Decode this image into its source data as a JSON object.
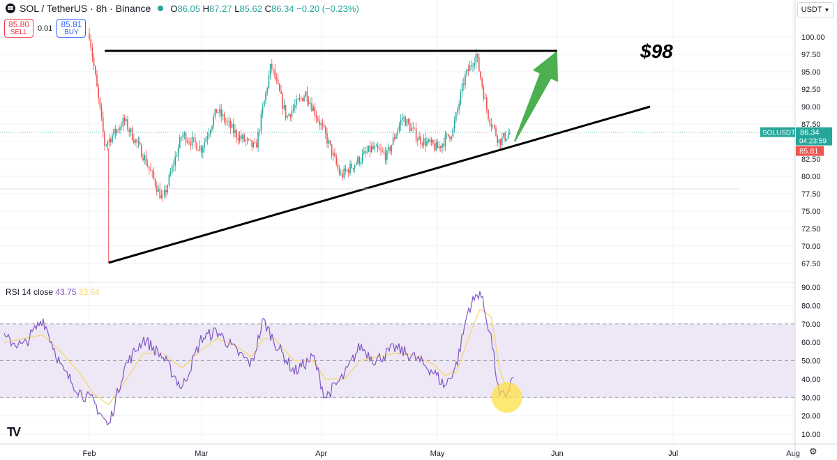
{
  "header": {
    "symbol": "SOL / TetherUS · 8h · Binance",
    "ohlc": {
      "o": "86.05",
      "h": "87.27",
      "l": "85.62",
      "c": "86.34",
      "chg": "−0.20 (−0.23%)"
    },
    "labels": {
      "o": "O",
      "h": "H",
      "l": "L",
      "c": "C"
    }
  },
  "trade": {
    "sell_price": "85.80",
    "sell_label": "SELL",
    "spread": "0.01",
    "buy_price": "85.81",
    "buy_label": "BUY"
  },
  "currency": "USDT",
  "rsi_legend": {
    "name": "RSI 14 close",
    "rsi": "43.75",
    "ma": "33.64"
  },
  "price_tag": {
    "symbol": "SOLUSDT",
    "price": "86.34",
    "countdown": "04:23:59",
    "bid": "85.81"
  },
  "annotation": {
    "target": "$98"
  },
  "colors": {
    "up": "#26a69a",
    "down": "#ef5350",
    "rsi": "#7e57c2",
    "rsi_ma": "#f5d76e",
    "arrow": "#4caf50",
    "band": "#ede7f6"
  },
  "chart_data": [
    {
      "type": "candlestick",
      "y_axis": {
        "min": 67.5,
        "max": 100.0,
        "ticks": [
          "100.00",
          "97.50",
          "95.00",
          "92.50",
          "90.00",
          "87.50",
          "85.00",
          "82.50",
          "80.00",
          "77.50",
          "75.00",
          "72.50",
          "70.00",
          "67.50"
        ]
      },
      "x_axis": {
        "ticks": [
          "Feb",
          "Mar",
          "Apr",
          "May",
          "Jun",
          "Jul",
          "Aug"
        ]
      },
      "dates": [
        "Feb 1",
        "Feb 5",
        "Feb 10",
        "Feb 15",
        "Feb 20",
        "Feb 25",
        "Mar 1",
        "Mar 5",
        "Mar 10",
        "Mar 15",
        "Mar 19",
        "Mar 23",
        "Mar 28",
        "Apr 2",
        "Apr 6",
        "Apr 10",
        "Apr 14",
        "Apr 18",
        "Apr 22",
        "Apr 26",
        "May 1",
        "May 5",
        "May 8",
        "May 11",
        "May 14",
        "May 17",
        "May 20"
      ],
      "close": [
        100.5,
        84.5,
        88.0,
        83.0,
        76.5,
        86.0,
        84.0,
        89.5,
        86.0,
        84.0,
        96.0,
        88.5,
        92.0,
        86.0,
        80.0,
        82.0,
        84.0,
        83.0,
        88.5,
        85.5,
        84.0,
        86.5,
        94.0,
        97.5,
        89.0,
        85.0,
        86.34
      ],
      "annotations": {
        "resistance": {
          "start": [
            "Feb 5",
            98.0
          ],
          "end": [
            "Jun 1",
            98.0
          ]
        },
        "support": {
          "start": [
            "Feb 6",
            67.6
          ],
          "end": [
            "Jun 25",
            90.0
          ]
        },
        "target_arrow": {
          "from": [
            "May 21",
            85.0
          ],
          "to": [
            "Jun 1",
            98.0
          ]
        }
      }
    },
    {
      "type": "line",
      "name": "RSI 14 close",
      "y_axis": {
        "min": 10,
        "max": 90,
        "ticks": [
          "90.00",
          "80.00",
          "70.00",
          "60.00",
          "50.00",
          "40.00",
          "30.00",
          "20.00",
          "10.00"
        ]
      },
      "bands": {
        "upper": 70,
        "middle": 50,
        "lower": 30
      },
      "dates": [
        "Jan 10",
        "Jan 15",
        "Jan 20",
        "Jan 25",
        "Jan 30",
        "Feb 2",
        "Feb 6",
        "Feb 10",
        "Feb 15",
        "Feb 20",
        "Feb 25",
        "Mar 1",
        "Mar 5",
        "Mar 10",
        "Mar 14",
        "Mar 17",
        "Mar 20",
        "Mar 25",
        "Mar 30",
        "Apr 2",
        "Apr 7",
        "Apr 11",
        "Apr 15",
        "Apr 20",
        "Apr 25",
        "Apr 30",
        "May 3",
        "May 6",
        "May 9",
        "May 12",
        "May 15",
        "May 17",
        "May 19",
        "May 21"
      ],
      "rsi": [
        62,
        58,
        73,
        45,
        32,
        28,
        14,
        46,
        62,
        52,
        35,
        62,
        66,
        55,
        48,
        72,
        60,
        44,
        52,
        30,
        42,
        58,
        50,
        57,
        52,
        44,
        36,
        48,
        78,
        88,
        62,
        30,
        32,
        43.75
      ],
      "rsi_ma": [
        60,
        62,
        64,
        54,
        42,
        32,
        26,
        38,
        54,
        54,
        46,
        56,
        62,
        58,
        52,
        62,
        62,
        50,
        50,
        40,
        40,
        50,
        52,
        54,
        53,
        48,
        42,
        44,
        62,
        78,
        74,
        46,
        34,
        33.64
      ]
    }
  ]
}
